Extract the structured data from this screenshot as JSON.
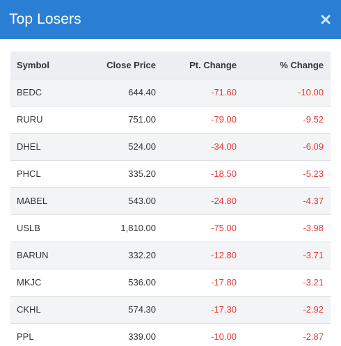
{
  "modal": {
    "title": "Top Losers",
    "close_icon": "close-icon"
  },
  "table": {
    "headers": {
      "symbol": "Symbol",
      "close_price": "Close Price",
      "pt_change": "Pt. Change",
      "pct_change": "% Change"
    },
    "rows": [
      {
        "symbol": "BEDC",
        "close_price": "644.40",
        "pt_change": "-71.60",
        "pct_change": "-10.00"
      },
      {
        "symbol": "RURU",
        "close_price": "751.00",
        "pt_change": "-79.00",
        "pct_change": "-9.52"
      },
      {
        "symbol": "DHEL",
        "close_price": "524.00",
        "pt_change": "-34.00",
        "pct_change": "-6.09"
      },
      {
        "symbol": "PHCL",
        "close_price": "335.20",
        "pt_change": "-18.50",
        "pct_change": "-5.23"
      },
      {
        "symbol": "MABEL",
        "close_price": "543.00",
        "pt_change": "-24.80",
        "pct_change": "-4.37"
      },
      {
        "symbol": "USLB",
        "close_price": "1,810.00",
        "pt_change": "-75.00",
        "pct_change": "-3.98"
      },
      {
        "symbol": "BARUN",
        "close_price": "332.20",
        "pt_change": "-12.80",
        "pct_change": "-3.71"
      },
      {
        "symbol": "MKJC",
        "close_price": "536.00",
        "pt_change": "-17.80",
        "pct_change": "-3.21"
      },
      {
        "symbol": "CKHL",
        "close_price": "574.30",
        "pt_change": "-17.30",
        "pct_change": "-2.92"
      },
      {
        "symbol": "PPL",
        "close_price": "339.00",
        "pt_change": "-10.00",
        "pct_change": "-2.87"
      }
    ]
  },
  "colors": {
    "header_bg": "#2a7fd4",
    "negative": "#e53935"
  }
}
